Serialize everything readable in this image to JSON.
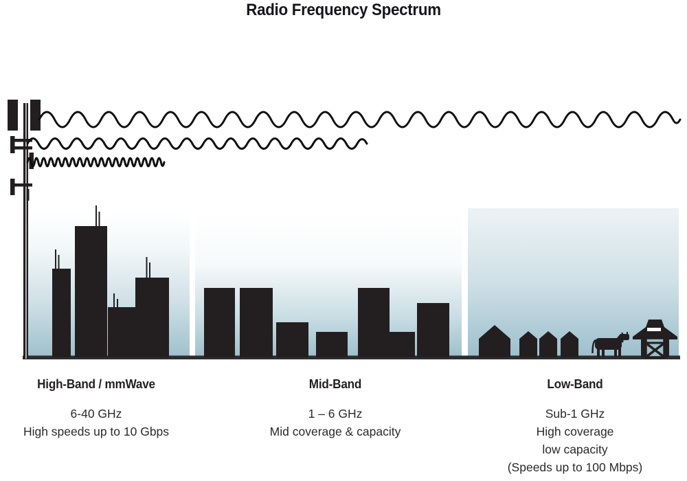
{
  "title": "Radio Frequency Spectrum",
  "colors": {
    "ink": "#231f20",
    "sky_bottom": "#9dbfcb",
    "sky_top": "#ffffff",
    "title_ink": "#15151d"
  },
  "tower": {
    "icon": "cell-tower-icon"
  },
  "waves": [
    {
      "icon": "long-wavelength-wave-icon",
      "band": "low-band",
      "relative_frequency": "low"
    },
    {
      "icon": "medium-wavelength-wave-icon",
      "band": "mid-band",
      "relative_frequency": "mid"
    },
    {
      "icon": "short-wavelength-wave-icon",
      "band": "high-band",
      "relative_frequency": "high"
    }
  ],
  "bands": [
    {
      "id": "high-band",
      "heading": "High-Band / mmWave",
      "lines": [
        "6-40 GHz",
        "High speeds up to 10 Gbps"
      ],
      "scene": "city-skyline"
    },
    {
      "id": "mid-band",
      "heading": "Mid-Band",
      "lines": [
        "1 – 6 GHz",
        "Mid coverage & capacity"
      ],
      "scene": "town-buildings"
    },
    {
      "id": "low-band",
      "heading": "Low-Band",
      "lines": [
        "Sub-1 GHz",
        "High coverage",
        "low capacity",
        "(Speeds up to 100 Mbps)"
      ],
      "scene": "farm-houses-cow-barn"
    }
  ]
}
